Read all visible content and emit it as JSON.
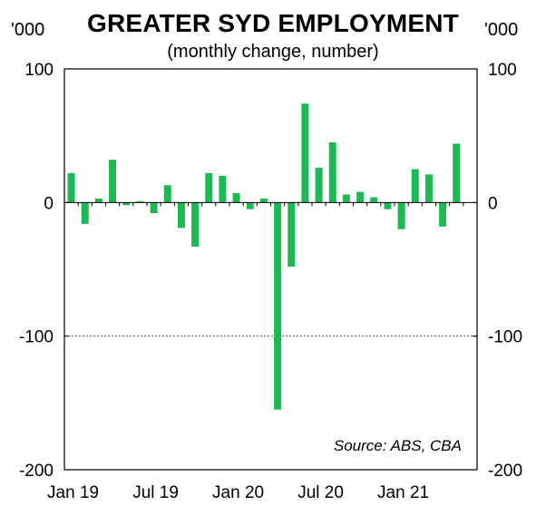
{
  "chart_data": {
    "type": "bar",
    "title": "GREATER SYD EMPLOYMENT",
    "subtitle": "(monthly change, number)",
    "unit_left": "'000",
    "unit_right": "'000",
    "source": "Source: ABS, CBA",
    "ylim": [
      -200,
      100
    ],
    "yticks": [
      100,
      0,
      -100,
      -200
    ],
    "ytick_labels_left": [
      "100",
      "0",
      "-100",
      "-200"
    ],
    "ytick_labels_right": [
      "100",
      "0",
      "-100",
      "-200"
    ],
    "reference_line": -100,
    "bar_color": "#1db954",
    "categories": [
      "Jan 19",
      "Feb 19",
      "Mar 19",
      "Apr 19",
      "May 19",
      "Jun 19",
      "Jul 19",
      "Aug 19",
      "Sep 19",
      "Oct 19",
      "Nov 19",
      "Dec 19",
      "Jan 20",
      "Feb 20",
      "Mar 20",
      "Apr 20",
      "May 20",
      "Jun 20",
      "Jul 20",
      "Aug 20",
      "Sep 20",
      "Oct 20",
      "Nov 20",
      "Dec 20",
      "Jan 21",
      "Feb 21",
      "Mar 21",
      "Apr 21",
      "May 21",
      "Jun 21"
    ],
    "values": [
      22,
      -16,
      3,
      32,
      -2,
      1,
      -8,
      13,
      -19,
      -33,
      22,
      20,
      7,
      -5,
      3,
      -155,
      -48,
      74,
      26,
      45,
      6,
      8,
      4,
      -5,
      -20,
      25,
      21,
      -18,
      44,
      0
    ],
    "xtick_labels": [
      "Jan 19",
      "Jul 19",
      "Jan 20",
      "Jul 20",
      "Jan 21"
    ],
    "xtick_indices": [
      0,
      6,
      12,
      18,
      24
    ]
  }
}
